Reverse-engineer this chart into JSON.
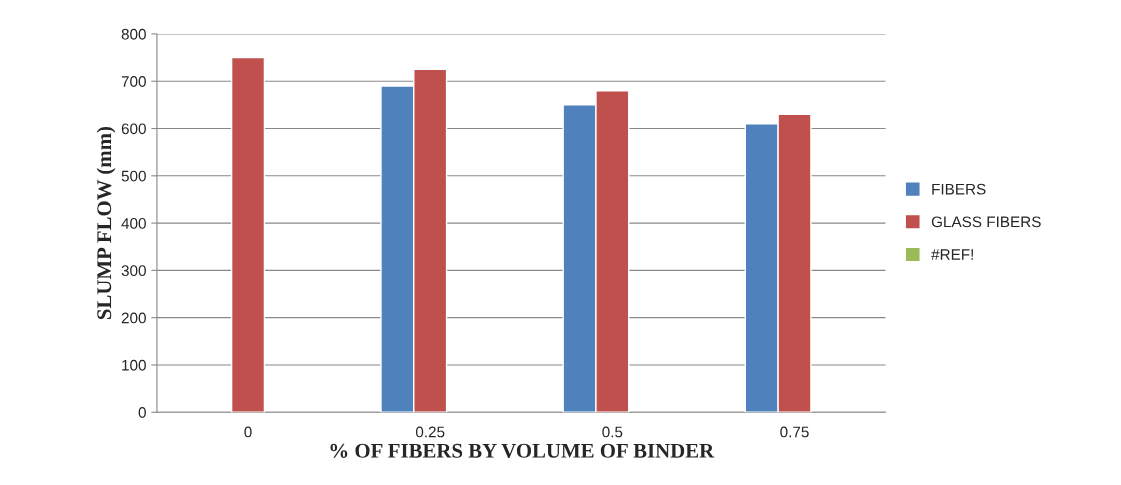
{
  "chart_data": {
    "type": "bar",
    "xlabel": "% OF FIBERS BY VOLUME OF BINDER",
    "ylabel": "SLUMP FLOW (mm)",
    "categories": [
      "0",
      "0.25",
      "0.5",
      "0.75"
    ],
    "series": [
      {
        "name": "FIBERS",
        "color": "#4f81bd",
        "values": [
          null,
          690,
          650,
          610
        ]
      },
      {
        "name": "GLASS FIBERS",
        "color": "#c0504d",
        "values": [
          750,
          725,
          680,
          630
        ]
      },
      {
        "name": "#REF!",
        "color": "#9bbb59",
        "values": [
          null,
          null,
          null,
          null
        ]
      }
    ],
    "ylim": [
      0,
      800
    ],
    "yticks": [
      0,
      100,
      200,
      300,
      400,
      500,
      600,
      700,
      800
    ],
    "grid": "y",
    "legend": "right"
  }
}
